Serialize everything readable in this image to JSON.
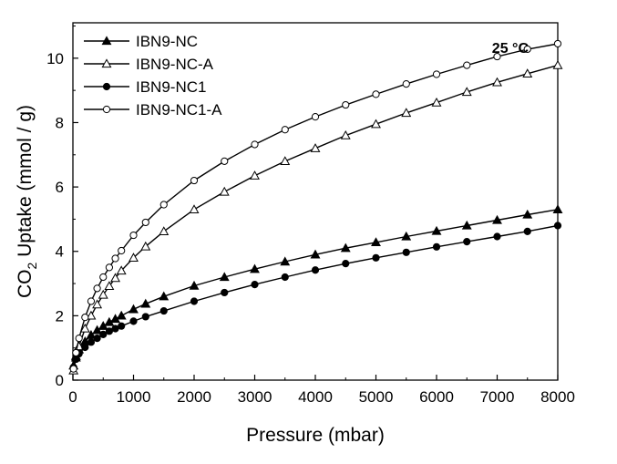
{
  "chart_data": {
    "type": "line",
    "title": "",
    "xlabel": "Pressure (mbar)",
    "ylabel": {
      "prefix": "CO",
      "subscript": "2",
      "suffix": " Uptake (mmol / g)"
    },
    "xlim": [
      0,
      8000
    ],
    "ylim": [
      0,
      11.1
    ],
    "xticks": [
      0,
      1000,
      2000,
      3000,
      4000,
      5000,
      6000,
      7000,
      8000
    ],
    "yticks": [
      0,
      2,
      4,
      6,
      8,
      10
    ],
    "grid": false,
    "legend_position": "top-left",
    "annotation": "25 °C",
    "series": [
      {
        "name": "IBN9-NC",
        "marker": "filled-triangle",
        "x": [
          10,
          50,
          100,
          200,
          300,
          400,
          500,
          600,
          700,
          800,
          1000,
          1200,
          1500,
          2000,
          2500,
          3000,
          3500,
          4000,
          4500,
          5000,
          5500,
          6000,
          6500,
          7000,
          7500,
          8000
        ],
        "y": [
          0.45,
          0.75,
          0.95,
          1.2,
          1.4,
          1.55,
          1.68,
          1.8,
          1.9,
          2.0,
          2.2,
          2.37,
          2.6,
          2.93,
          3.2,
          3.45,
          3.68,
          3.9,
          4.1,
          4.28,
          4.46,
          4.63,
          4.8,
          4.97,
          5.14,
          5.3
        ]
      },
      {
        "name": "IBN9-NC-A",
        "marker": "open-triangle",
        "x": [
          10,
          50,
          100,
          200,
          300,
          400,
          500,
          600,
          700,
          800,
          1000,
          1200,
          1500,
          2000,
          2500,
          3000,
          3500,
          4000,
          4500,
          5000,
          5500,
          6000,
          6500,
          7000,
          7500,
          8000
        ],
        "y": [
          0.3,
          0.7,
          1.05,
          1.6,
          2.0,
          2.35,
          2.65,
          2.92,
          3.17,
          3.4,
          3.8,
          4.15,
          4.62,
          5.3,
          5.85,
          6.35,
          6.8,
          7.2,
          7.6,
          7.95,
          8.3,
          8.62,
          8.95,
          9.25,
          9.52,
          9.78
        ]
      },
      {
        "name": "IBN9-NC1",
        "marker": "filled-circle",
        "x": [
          10,
          50,
          100,
          200,
          300,
          400,
          500,
          600,
          700,
          800,
          1000,
          1200,
          1500,
          2000,
          2500,
          3000,
          3500,
          4000,
          4500,
          5000,
          5500,
          6000,
          6500,
          7000,
          7500,
          8000
        ],
        "y": [
          0.4,
          0.65,
          0.82,
          1.02,
          1.18,
          1.3,
          1.42,
          1.52,
          1.6,
          1.68,
          1.83,
          1.97,
          2.15,
          2.45,
          2.72,
          2.97,
          3.2,
          3.42,
          3.62,
          3.8,
          3.97,
          4.14,
          4.3,
          4.46,
          4.62,
          4.8
        ]
      },
      {
        "name": "IBN9-NC1-A",
        "marker": "open-circle",
        "x": [
          10,
          50,
          100,
          200,
          300,
          400,
          500,
          600,
          700,
          800,
          1000,
          1200,
          1500,
          2000,
          2500,
          3000,
          3500,
          4000,
          4500,
          5000,
          5500,
          6000,
          6500,
          7000,
          7500,
          8000
        ],
        "y": [
          0.35,
          0.85,
          1.3,
          1.95,
          2.45,
          2.85,
          3.2,
          3.5,
          3.78,
          4.02,
          4.5,
          4.9,
          5.45,
          6.2,
          6.8,
          7.32,
          7.78,
          8.18,
          8.55,
          8.88,
          9.2,
          9.5,
          9.78,
          10.05,
          10.28,
          10.45
        ]
      }
    ]
  }
}
